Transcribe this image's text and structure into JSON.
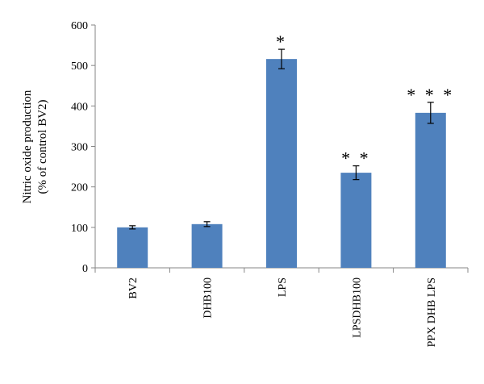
{
  "chart_data": {
    "type": "bar",
    "categories": [
      "BV2",
      "DHB100",
      "LPS",
      "LPSDHB100",
      "PPX DHB LPS"
    ],
    "values": [
      100,
      108,
      516,
      235,
      383
    ],
    "errors": [
      4,
      6,
      24,
      17,
      26
    ],
    "annotations": [
      "",
      "",
      "*",
      "**",
      "***"
    ],
    "title": "",
    "xlabel": "",
    "ylabel_lines": [
      "Nitric oxide production",
      "(% of control BV2)"
    ],
    "ylim": [
      0,
      600
    ],
    "yticks": [
      "0",
      "100",
      "200",
      "300",
      "400",
      "500",
      "600"
    ],
    "bar_color": "#4f81bd",
    "grid": false,
    "legend": "none"
  }
}
